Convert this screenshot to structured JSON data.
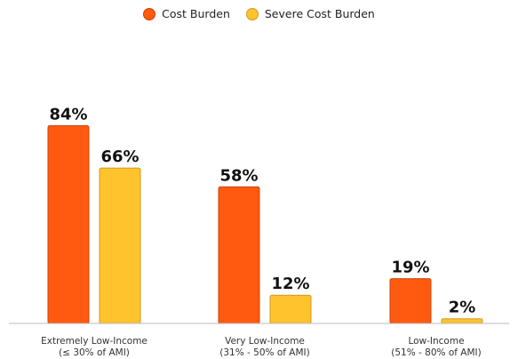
{
  "chart_data": {
    "type": "bar",
    "categories": [
      [
        "Extremely Low-Income",
        "(≤ 30% of AMI)"
      ],
      [
        "Very Low-Income",
        "(31% - 50% of AMI)"
      ],
      [
        "Low-Income",
        "(51% - 80% of AMI)"
      ]
    ],
    "series": [
      {
        "name": "Cost Burden",
        "values": [
          84,
          58,
          19
        ],
        "labels": [
          "84%",
          "58%",
          "19%"
        ],
        "color": "#FF5A0F"
      },
      {
        "name": "Severe Cost Burden",
        "values": [
          66,
          12,
          2
        ],
        "labels": [
          "66%",
          "12%",
          "2%"
        ],
        "color": "#FFC32E"
      }
    ],
    "title": "",
    "xlabel": "",
    "ylabel": "",
    "ylim": [
      0,
      100
    ],
    "grid": false,
    "legend_position": "top-center"
  }
}
